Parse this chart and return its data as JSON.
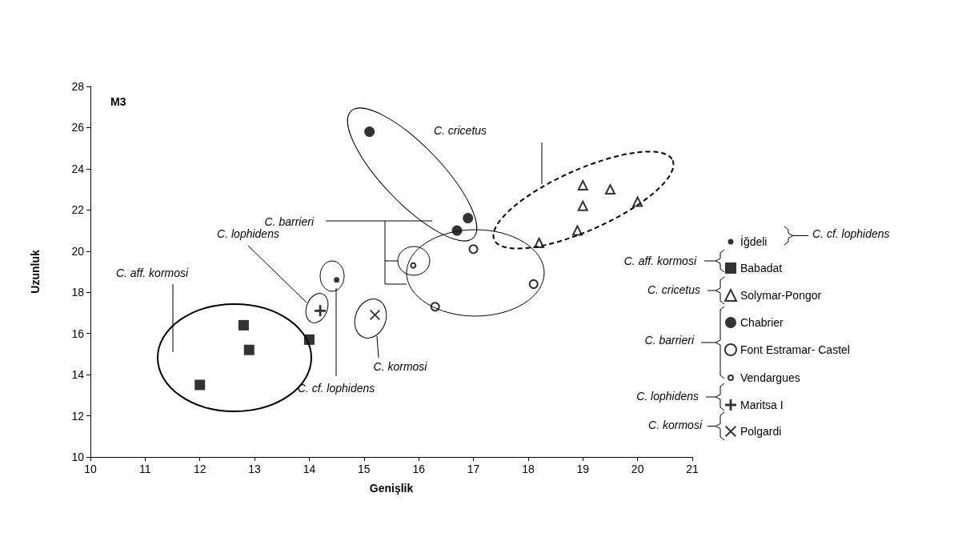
{
  "chart_data": {
    "type": "scatter",
    "xlabel": "Genişlik",
    "ylabel": "Uzunluk",
    "xlim": [
      10,
      21
    ],
    "xticks": [
      10,
      11,
      12,
      13,
      14,
      15,
      16,
      17,
      18,
      19,
      20,
      21
    ],
    "ylim": [
      10,
      28
    ],
    "yticks": [
      10,
      12,
      14,
      16,
      18,
      20,
      22,
      24,
      26,
      28
    ],
    "grid": false,
    "legend": "right",
    "series": [
      {
        "name": "İğdeli",
        "color": "#000000",
        "marker": "circle-small",
        "x": [
          14.5
        ],
        "values": [
          18.6
        ]
      },
      {
        "name": "Babadat",
        "color": "#000000",
        "marker": "square",
        "x": [
          12,
          12.8,
          12.9,
          14
        ],
        "values": [
          13.5,
          16.4,
          15.2,
          15.7
        ]
      },
      {
        "name": "Solymar-Pongor",
        "color": "#000000",
        "marker": "triangle-open",
        "x": [
          19,
          19.5,
          19,
          20,
          18.9,
          18.2
        ],
        "values": [
          23.2,
          23,
          22.2,
          22.4,
          21,
          20.4
        ]
      },
      {
        "name": "Chabrier",
        "color": "#000000",
        "marker": "circle",
        "x": [
          15.1,
          16.9,
          16.7
        ],
        "values": [
          25.8,
          21.6,
          21
        ]
      },
      {
        "name": "Font Estramar- Castel",
        "color": "#000000",
        "marker": "circle-open",
        "x": [
          17,
          18.1,
          16.3
        ],
        "values": [
          20.1,
          18.4,
          17.3
        ]
      },
      {
        "name": "Vendargues",
        "color": "#000000",
        "marker": "circle-open-small",
        "x": [
          15.9
        ],
        "values": [
          19.3
        ]
      },
      {
        "name": "Maritsa I",
        "color": "#000000",
        "marker": "cross",
        "x": [
          14.2
        ],
        "values": [
          17.1
        ]
      },
      {
        "name": "Polgardi",
        "color": "#000000",
        "marker": "x",
        "x": [
          15.2
        ],
        "values": [
          16.9
        ]
      }
    ],
    "annotations": [
      "M3",
      "C. cricetus",
      "C. barrieri",
      "C. lophidens",
      "C. aff. kormosi",
      "C. kormosi",
      "C. cf. lophidens",
      "C. cf. lophidens",
      "C. aff. kormosi",
      "C. cricetus",
      "C. barrieri",
      "C. lophidens",
      "C. kormosi"
    ]
  }
}
